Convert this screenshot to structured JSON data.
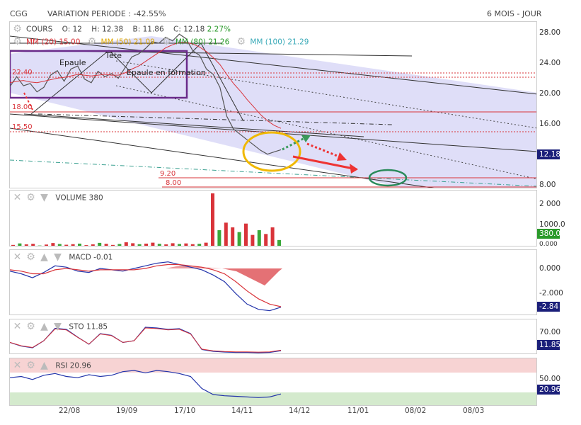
{
  "header": {
    "symbol": "CGG",
    "variation_label": "VARIATION PERIODE : -42.55%",
    "period_label": "6 MOIS - JOUR"
  },
  "price_panel": {
    "title": "COURS",
    "open": "O: 12",
    "high": "H: 12.38",
    "low": "B: 11.86",
    "close": "C: 12.18",
    "change": "2.27%",
    "mm20": "MM (20) 15.00",
    "mm50": "MM (50) 21.09",
    "mm80": "MM (80) 21.26",
    "mm100": "MM (100) 21.29",
    "last_tag": "12.18",
    "annotations": {
      "epaule": "Epaule",
      "tete": "Tête",
      "epaule_formation": "Epaule en formation",
      "lvl_2240": "22.40",
      "lvl_1800": "18.00",
      "lvl_1550": "15.50",
      "lvl_920": "9.20",
      "lvl_800": "8.00"
    }
  },
  "volume_panel": {
    "title": "VOLUME",
    "value": "380",
    "tag": "380.0"
  },
  "macd_panel": {
    "title": "MACD",
    "value": "-0.01",
    "tag": "-2.84"
  },
  "sto_panel": {
    "title": "STO",
    "value": "11.85",
    "tag": "11.85"
  },
  "rsi_panel": {
    "title": "RSI",
    "value": "20.96",
    "tag": "20.96"
  },
  "colors": {
    "up": "#3aa83a",
    "down": "#d9343a",
    "channel": "#d8d6f8",
    "tag_dark": "#1b1f7a",
    "tag_green": "#2a9a2a"
  },
  "chart_data": [
    {
      "type": "line",
      "title": "COURS",
      "x_ticks": [
        "22/08",
        "19/09",
        "17/10",
        "14/11",
        "14/12",
        "11/01",
        "08/02",
        "08/03"
      ],
      "y_ticks": [
        "28.00",
        "24.00",
        "20.00",
        "16.00",
        "12.18",
        "8.00"
      ],
      "ylim": [
        7,
        29
      ],
      "series": [
        {
          "name": "COURS",
          "values": [
            20.5,
            21.8,
            20.6,
            20.9,
            19.8,
            20.4,
            22.0,
            22.6,
            21.2,
            22.8,
            23.2,
            21.5,
            21.0,
            22.5,
            21.8,
            22.2,
            21.6,
            23.0,
            24.4,
            24.8,
            25.5,
            26.4,
            26.2,
            27.0,
            26.5,
            27.4,
            26.8,
            25.2,
            24.6,
            22.8,
            22.1,
            20.4,
            16.6,
            14.9,
            14.2,
            13.5,
            12.8,
            12.1,
            11.6,
            11.9,
            12.18
          ]
        },
        {
          "name": "MM (20)",
          "values": [
            21.0,
            21.2,
            21.3,
            21.1,
            21.0,
            21.2,
            21.4,
            21.6,
            21.7,
            21.9,
            22.1,
            22.0,
            21.9,
            22.0,
            22.1,
            22.0,
            22.0,
            22.3,
            22.8,
            23.2,
            23.8,
            24.4,
            25.0,
            25.6,
            26.0,
            26.3,
            26.3,
            26.1,
            25.7,
            25.1,
            24.3,
            23.4,
            22.1,
            20.9,
            19.9,
            18.8,
            17.8,
            16.8,
            16.0,
            15.4,
            15.0
          ]
        }
      ],
      "levels": [
        22.4,
        18.0,
        15.5,
        9.2,
        8.0
      ]
    },
    {
      "type": "bar",
      "title": "VOLUME",
      "y_ticks": [
        "2 000",
        "1000.0",
        "380.0",
        "0.000"
      ],
      "values": [
        120,
        200,
        150,
        180,
        90,
        140,
        220,
        170,
        130,
        160,
        190,
        110,
        150,
        230,
        180,
        120,
        170,
        260,
        210,
        160,
        190,
        240,
        180,
        150,
        210,
        170,
        200,
        160,
        180,
        240,
        2850,
        900,
        1300,
        1050,
        800,
        1250,
        650,
        900,
        700,
        1050,
        380
      ]
    },
    {
      "type": "line",
      "title": "MACD",
      "y_ticks": [
        "0.000",
        "-2.000",
        "-2.84"
      ],
      "series": [
        {
          "name": "MACD",
          "values": [
            -0.1,
            -0.3,
            -0.6,
            -0.2,
            0.3,
            0.2,
            -0.1,
            -0.2,
            0.1,
            0.0,
            -0.1,
            0.1,
            0.3,
            0.5,
            0.6,
            0.4,
            0.2,
            0.0,
            -0.4,
            -0.9,
            -1.8,
            -2.6,
            -3.0,
            -3.1,
            -2.84
          ]
        },
        {
          "name": "Signal",
          "values": [
            0.0,
            -0.1,
            -0.3,
            -0.3,
            0.0,
            0.1,
            0.0,
            -0.1,
            0.0,
            0.0,
            0.0,
            0.0,
            0.1,
            0.3,
            0.4,
            0.4,
            0.3,
            0.2,
            0.0,
            -0.3,
            -0.9,
            -1.6,
            -2.2,
            -2.6,
            -2.8
          ]
        }
      ]
    },
    {
      "type": "line",
      "title": "STO",
      "y_ticks": [
        "70.00",
        "11.85"
      ],
      "series": [
        {
          "name": "STO",
          "values": [
            35,
            25,
            20,
            40,
            75,
            72,
            50,
            30,
            60,
            55,
            35,
            40,
            78,
            76,
            72,
            74,
            60,
            15,
            10,
            8,
            7,
            7,
            6,
            7,
            11.85
          ]
        }
      ]
    },
    {
      "type": "line",
      "title": "RSI",
      "y_ticks": [
        "50.00",
        "20.96"
      ],
      "series": [
        {
          "name": "RSI",
          "values": [
            48,
            50,
            45,
            52,
            55,
            50,
            48,
            53,
            50,
            52,
            58,
            60,
            56,
            60,
            58,
            55,
            50,
            30,
            20,
            18,
            17,
            16,
            15,
            16,
            20.96
          ]
        }
      ]
    }
  ]
}
